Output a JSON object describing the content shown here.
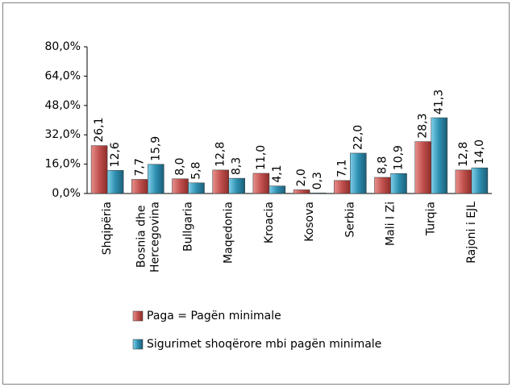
{
  "chart_data": {
    "type": "bar",
    "categories": [
      "Shqipëria",
      "Bosnia dhe Hercegovina",
      "Bullgaria",
      "Maqedonia",
      "Kroacia",
      "Kosova",
      "Serbia",
      "Mali I Zi",
      "Turqia",
      "Rajoni i EJL"
    ],
    "series": [
      {
        "name": "Paga = Pagën minimale",
        "color": "#c0504d",
        "values": [
          26.1,
          7.7,
          8.0,
          12.8,
          11.0,
          2.0,
          7.1,
          8.8,
          28.3,
          12.8
        ],
        "value_labels": [
          "26,1",
          "7,7",
          "8,0",
          "12,8",
          "11,0",
          "2,0",
          "7,1",
          "8,8",
          "28,3",
          "12,8"
        ]
      },
      {
        "name": "Sigurimet shoqërore mbi pagën minimale",
        "color": "#2e8fb0",
        "values": [
          12.6,
          15.9,
          5.8,
          8.3,
          4.1,
          0.3,
          22.0,
          10.9,
          41.3,
          14.0
        ],
        "value_labels": [
          "12,6",
          "15,9",
          "5,8",
          "8,3",
          "4,1",
          "0,3",
          "22,0",
          "10,9",
          "41,3",
          "14,0"
        ]
      }
    ],
    "ylim": [
      0,
      80
    ],
    "yticks": [
      {
        "value": 0,
        "label": "0,0%"
      },
      {
        "value": 16,
        "label": "16,0%"
      },
      {
        "value": 32,
        "label": "32,0%"
      },
      {
        "value": 48,
        "label": "48,0%"
      },
      {
        "value": 64,
        "label": "64,0%"
      },
      {
        "value": 80,
        "label": "80,0%"
      }
    ],
    "legend": "bottom"
  }
}
